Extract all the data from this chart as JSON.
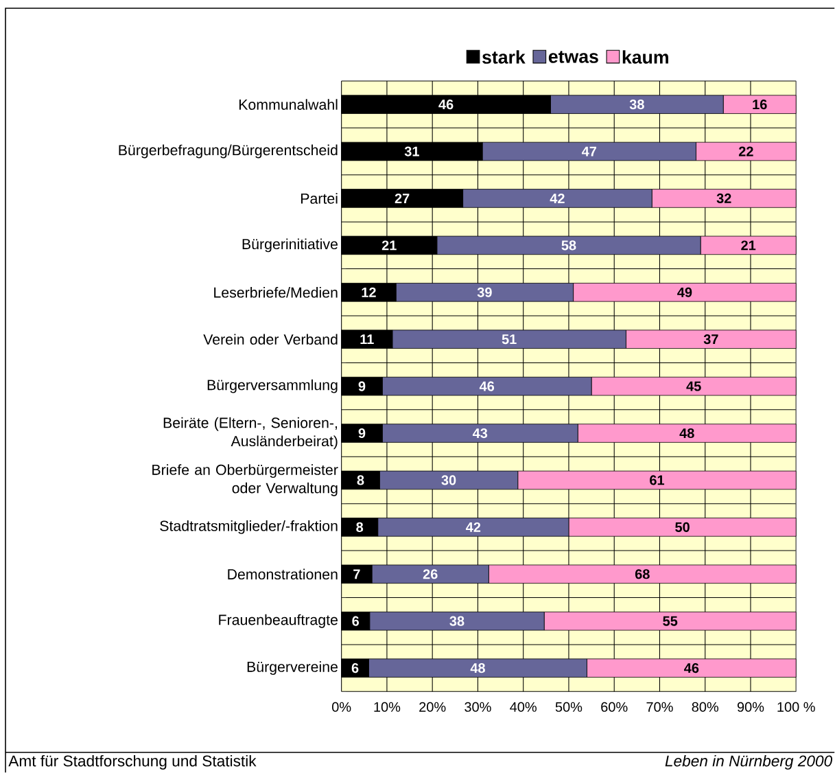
{
  "chart_data": {
    "type": "bar",
    "orientation": "horizontal",
    "stacked": true,
    "categories": [
      "Kommunalwahl",
      "Bürgerbefragung/Bürgerentscheid",
      "Partei",
      "Bürgerinitiative",
      "Leserbriefe/Medien",
      "Verein oder Verband",
      "Bürgerversammlung",
      "Beiräte (Eltern-, Senioren-, Ausländerbeirat)",
      "Briefe an Oberbürgermeister oder Verwaltung",
      "Stadtratsmitglieder/-fraktion",
      "Demonstrationen",
      "Frauenbeauftragte",
      "Bürgervereine"
    ],
    "series": [
      {
        "name": "stark",
        "color": "#000000",
        "values": [
          46,
          31,
          26.7,
          21,
          12,
          11.2,
          9,
          9,
          8.4,
          8,
          6.7,
          6.2,
          6
        ],
        "value_labels": [
          "46",
          "31",
          "27",
          "21",
          "12",
          "11",
          "9",
          "9",
          "8",
          "8",
          "7",
          "6",
          "6"
        ]
      },
      {
        "name": "etwas",
        "color": "#666699",
        "values": [
          38,
          47,
          41.6,
          58,
          39,
          51.4,
          46,
          43,
          30.4,
          42,
          25.7,
          38.4,
          48
        ],
        "value_labels": [
          "38",
          "47",
          "42",
          "58",
          "39",
          "51",
          "46",
          "43",
          "30",
          "42",
          "26",
          "38",
          "48"
        ]
      },
      {
        "name": "kaum",
        "color": "#ff99cc",
        "values": [
          16,
          22,
          31.7,
          21,
          49,
          37.4,
          45,
          48,
          61.2,
          50,
          67.6,
          55.4,
          46
        ],
        "value_labels": [
          "16",
          "22",
          "32",
          "21",
          "49",
          "37",
          "45",
          "48",
          "61",
          "50",
          "68",
          "55",
          "46"
        ]
      }
    ],
    "xlim": [
      0,
      100
    ],
    "xticks": [
      {
        "value": 0,
        "label": "0%"
      },
      {
        "value": 10,
        "label": "10%"
      },
      {
        "value": 20,
        "label": "20%"
      },
      {
        "value": 30,
        "label": "30%"
      },
      {
        "value": 40,
        "label": "40%"
      },
      {
        "value": 50,
        "label": "50%"
      },
      {
        "value": 60,
        "label": "60%"
      },
      {
        "value": 70,
        "label": "70%"
      },
      {
        "value": 80,
        "label": "80%"
      },
      {
        "value": 90,
        "label": "90%"
      },
      {
        "value": 100,
        "label": "100 %"
      }
    ],
    "grid": true,
    "legend": "top",
    "annotations": [
      "Amt für Stadtforschung und Statistik",
      "Leben in Nürnberg 2000"
    ]
  }
}
